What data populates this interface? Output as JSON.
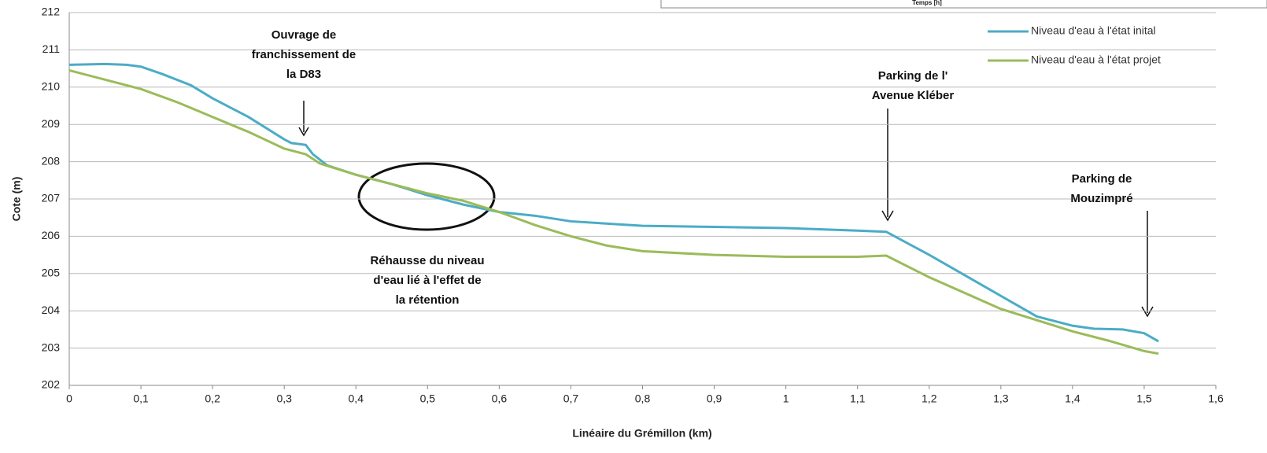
{
  "chart_data": {
    "type": "line",
    "header_fragment": "Temps [h]",
    "xlabel": "Linéaire du Grémillon (km)",
    "ylabel": "Cote (m)",
    "xlim": [
      0,
      1.6
    ],
    "ylim": [
      202,
      212
    ],
    "xticks": [
      0,
      {
        "value": 0.1,
        "label": "0,1"
      },
      {
        "value": 0.2,
        "label": "0,2"
      },
      {
        "value": 0.3,
        "label": "0,3"
      },
      {
        "value": 0.4,
        "label": "0,4"
      },
      {
        "value": 0.5,
        "label": "0,5"
      },
      {
        "value": 0.6,
        "label": "0,6"
      },
      {
        "value": 0.7,
        "label": "0,7"
      },
      {
        "value": 0.8,
        "label": "0,8"
      },
      {
        "value": 0.9,
        "label": "0,9"
      },
      1,
      {
        "value": 1.1,
        "label": "1,1"
      },
      {
        "value": 1.2,
        "label": "1,2"
      },
      {
        "value": 1.3,
        "label": "1,3"
      },
      {
        "value": 1.4,
        "label": "1,4"
      },
      {
        "value": 1.5,
        "label": "1,5"
      },
      {
        "value": 1.6,
        "label": "1,6"
      }
    ],
    "yticks": [
      202,
      203,
      204,
      205,
      206,
      207,
      208,
      209,
      210,
      211,
      212
    ],
    "grid": true,
    "legend": "upper right",
    "series": [
      {
        "name": "Niveau d'eau à l'état inital",
        "color": "#4bacc6",
        "x": [
          0,
          0.05,
          0.08,
          0.1,
          0.13,
          0.17,
          0.2,
          0.25,
          0.3,
          0.31,
          0.33,
          0.34,
          0.36,
          0.4,
          0.45,
          0.5,
          0.55,
          0.6,
          0.65,
          0.7,
          0.8,
          0.9,
          1.0,
          1.1,
          1.14,
          1.2,
          1.3,
          1.35,
          1.4,
          1.43,
          1.47,
          1.5,
          1.52
        ],
        "values": [
          210.6,
          210.62,
          210.6,
          210.55,
          210.35,
          210.05,
          209.7,
          209.2,
          208.6,
          208.5,
          208.45,
          208.2,
          207.9,
          207.65,
          207.4,
          207.1,
          206.85,
          206.65,
          206.55,
          206.4,
          206.28,
          206.25,
          206.22,
          206.15,
          206.12,
          205.5,
          204.4,
          203.85,
          203.6,
          203.52,
          203.5,
          203.4,
          203.18
        ]
      },
      {
        "name": "Niveau d'eau à l'état projet",
        "color": "#9bbb59",
        "x": [
          0,
          0.05,
          0.1,
          0.15,
          0.2,
          0.25,
          0.3,
          0.33,
          0.35,
          0.4,
          0.45,
          0.5,
          0.55,
          0.6,
          0.65,
          0.7,
          0.75,
          0.8,
          0.9,
          1.0,
          1.1,
          1.14,
          1.2,
          1.3,
          1.35,
          1.4,
          1.45,
          1.5,
          1.52
        ],
        "values": [
          210.45,
          210.2,
          209.95,
          209.6,
          209.2,
          208.8,
          208.35,
          208.2,
          207.95,
          207.65,
          207.4,
          207.15,
          206.95,
          206.65,
          206.3,
          206.0,
          205.75,
          205.6,
          205.5,
          205.45,
          205.45,
          205.48,
          204.9,
          204.05,
          203.75,
          203.45,
          203.2,
          202.92,
          202.85
        ]
      }
    ],
    "annotations": [
      {
        "lines": [
          "Ouvrage de",
          "franchissement de",
          "la D83"
        ]
      },
      {
        "lines": [
          "Parking de l'",
          "Avenue Kléber"
        ]
      },
      {
        "lines": [
          "Parking de",
          "Mouzimpré"
        ]
      },
      {
        "lines": [
          "Réhausse du niveau",
          "d'eau lié à l'effet de",
          "la rétention"
        ]
      }
    ]
  }
}
